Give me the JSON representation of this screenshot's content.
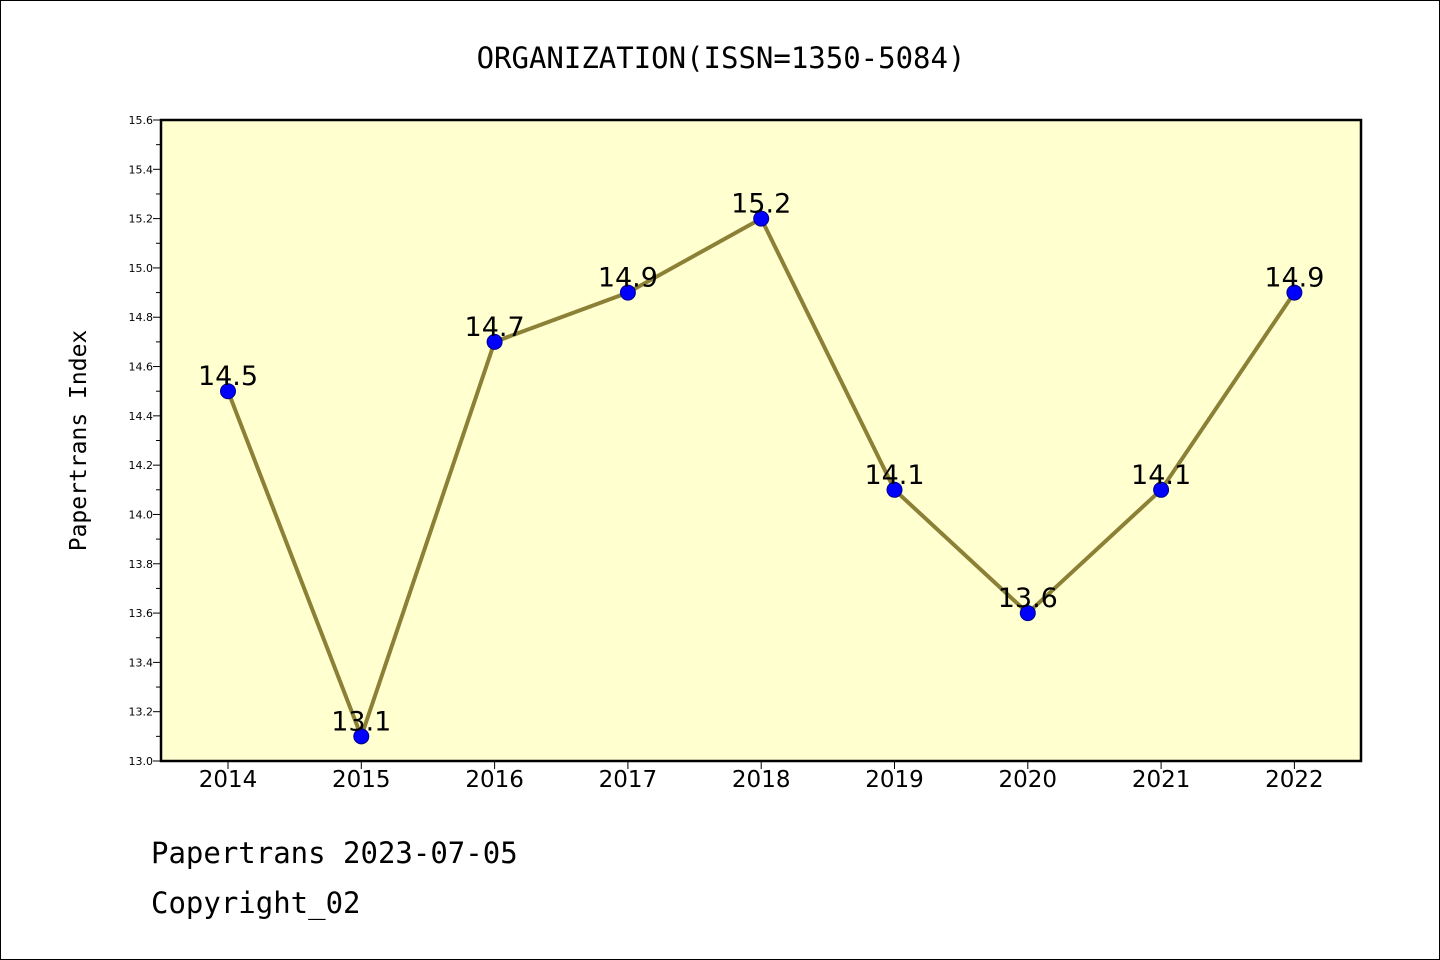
{
  "chart_data": {
    "type": "line",
    "title": "ORGANIZATION(ISSN=1350-5084)",
    "ylabel": "Papertrans Index",
    "xlabel": "",
    "categories": [
      "2014",
      "2015",
      "2016",
      "2017",
      "2018",
      "2019",
      "2020",
      "2021",
      "2022"
    ],
    "series": [
      {
        "values": [
          14.5,
          13.1,
          14.7,
          14.9,
          15.2,
          14.1,
          13.6,
          14.1,
          14.9
        ],
        "data_labels": [
          "14.5",
          "13.1",
          "14.7",
          "14.9",
          "15.2",
          "14.1",
          "13.6",
          "14.1",
          "14.9"
        ]
      }
    ],
    "ylim": [
      13.0,
      15.6
    ],
    "yticks": [
      13.0,
      13.2,
      13.4,
      13.6,
      13.8,
      14.0,
      14.2,
      14.4,
      14.6,
      14.8,
      15.0,
      15.2,
      15.4,
      15.6
    ],
    "ytick_labels": [
      "13.0",
      "13.2",
      "13.4",
      "13.6",
      "13.8",
      "14.0",
      "14.2",
      "14.4",
      "14.6",
      "14.8",
      "15.0",
      "15.2",
      "15.4",
      "15.6"
    ],
    "grid": false,
    "legend": "none",
    "colors": {
      "plot_background": "#ffffd0",
      "line": "#8b8035",
      "marker": "#0000ff",
      "marker_edge": "#00008b"
    }
  },
  "footer": {
    "date_line": "Papertrans 2023-07-05",
    "copyright": "Copyright_02"
  }
}
